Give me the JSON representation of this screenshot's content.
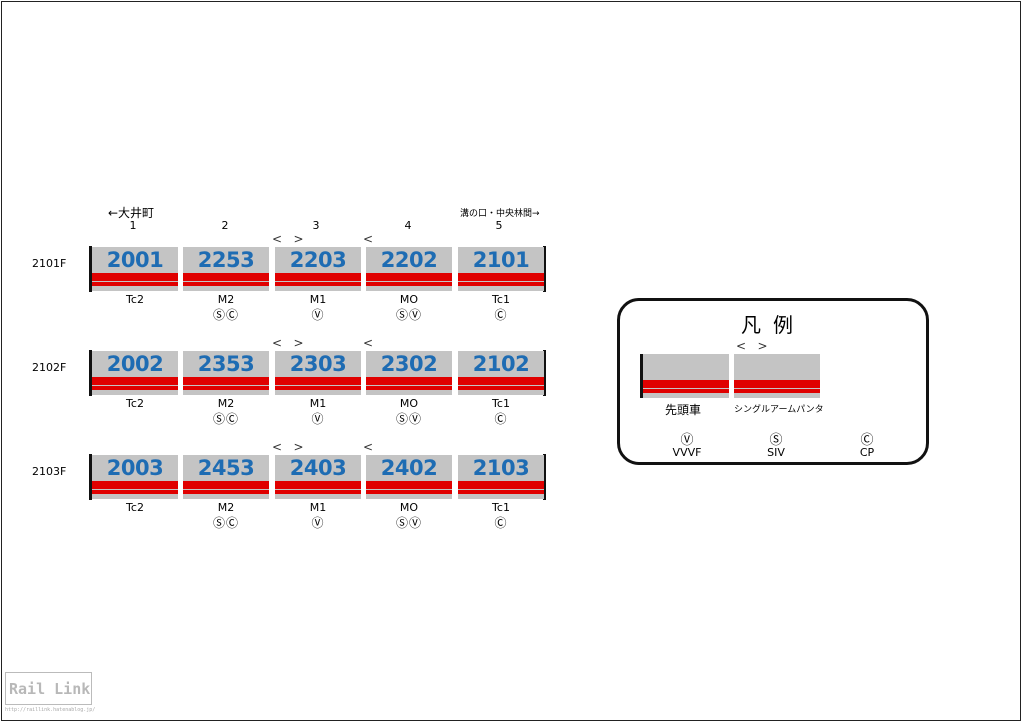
{
  "direction": {
    "left": "←大井町",
    "right": "溝の口・中央林間→"
  },
  "positions": [
    "1",
    "2",
    "3",
    "4",
    "5"
  ],
  "formations": [
    {
      "name": "2101F",
      "cars": [
        {
          "number": "2001",
          "type": "Tc2",
          "equip": "",
          "panto": ""
        },
        {
          "number": "2253",
          "type": "M2",
          "equip": "ⓈⒸ",
          "panto": ""
        },
        {
          "number": "2203",
          "type": "M1",
          "equip": "Ⓥ",
          "panto": "<   >"
        },
        {
          "number": "2202",
          "type": "MO",
          "equip": "ⓈⓋ",
          "panto": "<"
        },
        {
          "number": "2101",
          "type": "Tc1",
          "equip": "Ⓒ",
          "panto": ""
        }
      ]
    },
    {
      "name": "2102F",
      "cars": [
        {
          "number": "2002",
          "type": "Tc2",
          "equip": "",
          "panto": ""
        },
        {
          "number": "2353",
          "type": "M2",
          "equip": "ⓈⒸ",
          "panto": ""
        },
        {
          "number": "2303",
          "type": "M1",
          "equip": "Ⓥ",
          "panto": "<   >"
        },
        {
          "number": "2302",
          "type": "MO",
          "equip": "ⓈⓋ",
          "panto": "<"
        },
        {
          "number": "2102",
          "type": "Tc1",
          "equip": "Ⓒ",
          "panto": ""
        }
      ]
    },
    {
      "name": "2103F",
      "cars": [
        {
          "number": "2003",
          "type": "Tc2",
          "equip": "",
          "panto": ""
        },
        {
          "number": "2453",
          "type": "M2",
          "equip": "ⓈⒸ",
          "panto": ""
        },
        {
          "number": "2403",
          "type": "M1",
          "equip": "Ⓥ",
          "panto": "<   >"
        },
        {
          "number": "2402",
          "type": "MO",
          "equip": "ⓈⓋ",
          "panto": "<"
        },
        {
          "number": "2103",
          "type": "Tc1",
          "equip": "Ⓒ",
          "panto": ""
        }
      ]
    }
  ],
  "legend": {
    "title": "凡例",
    "lead_car_label": "先頭車",
    "single_arm_label": "シングルアームパンタ",
    "single_arm_panto": "<   >",
    "symbols": [
      {
        "symbol": "Ⓥ",
        "label": "VVVF"
      },
      {
        "symbol": "Ⓢ",
        "label": "SIV"
      },
      {
        "symbol": "Ⓒ",
        "label": "CP"
      }
    ]
  },
  "logo": {
    "text": "Rail Link",
    "url": "http://raillink.hatenablog.jp/"
  },
  "colors": {
    "car_body": "#c4c4c4",
    "stripe": "#e00000",
    "number": "#1e6cb3"
  }
}
